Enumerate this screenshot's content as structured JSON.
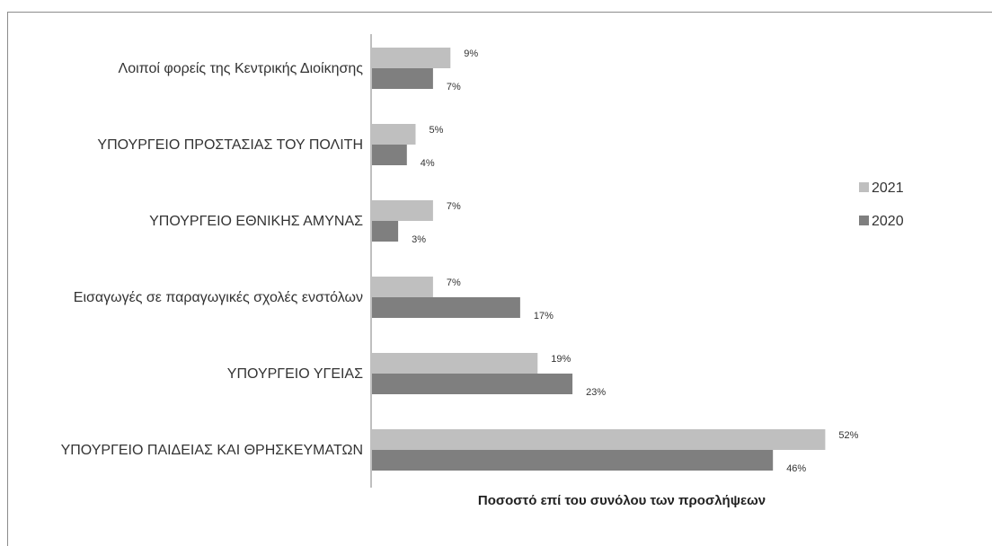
{
  "chart_data": {
    "type": "bar",
    "orientation": "horizontal",
    "title": "",
    "categories": [
      "Λοιποί φορείς της Κεντρικής Διοίκησης",
      "ΥΠΟΥΡΓΕΙΟ ΠΡΟΣΤΑΣΙΑΣ ΤΟΥ ΠΟΛΙΤΗ",
      "ΥΠΟΥΡΓΕΙΟ ΕΘΝΙΚΗΣ ΑΜΥΝΑΣ",
      "Εισαγωγές σε παραγωγικές σχολές ενστόλων",
      "ΥΠΟΥΡΓΕΙΟ ΥΓΕΙΑΣ",
      "ΥΠΟΥΡΓΕΙΟ ΠΑΙΔΕΙΑΣ ΚΑΙ ΘΡΗΣΚΕΥΜΑΤΩΝ"
    ],
    "series": [
      {
        "name": "2021",
        "color": "#bfbfbf",
        "values": [
          9,
          5,
          7,
          7,
          19,
          52
        ],
        "labels": [
          "9%",
          "5%",
          "7%",
          "7%",
          "19%",
          "52%"
        ]
      },
      {
        "name": "2020",
        "color": "#7f7f7f",
        "values": [
          7,
          4,
          3,
          17,
          23,
          46
        ],
        "labels": [
          "7%",
          "4%",
          "3%",
          "17%",
          "23%",
          "46%"
        ]
      }
    ],
    "xlabel": "Ποσοστό επί του συνόλου των προσλήψεων",
    "xlim": [
      0,
      60
    ],
    "grid": false,
    "legend_position": "right"
  }
}
